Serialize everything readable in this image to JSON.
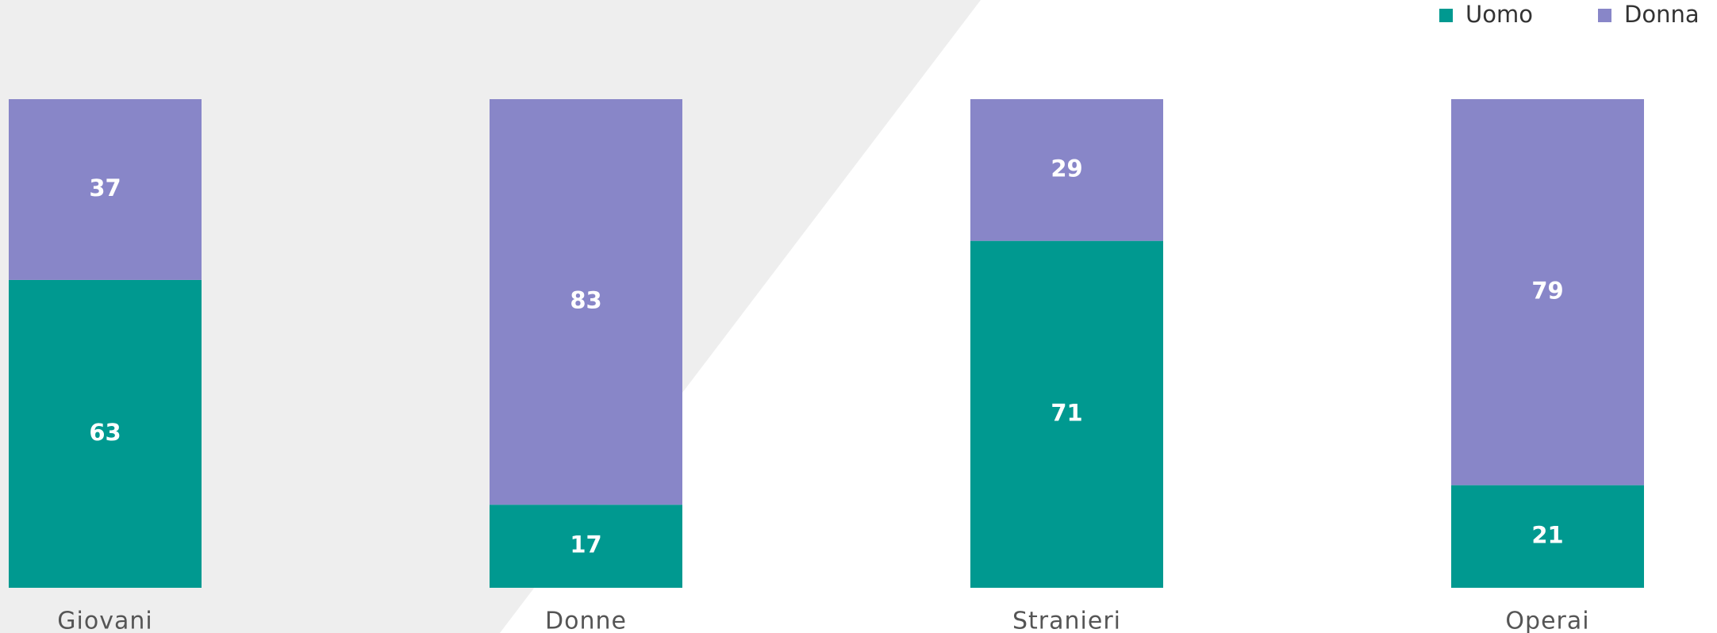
{
  "chart_data": {
    "type": "stacked_bar",
    "categories": [
      "Giovani",
      "Donne",
      "Stranieri",
      "Operai"
    ],
    "series": [
      {
        "name": "Uomo",
        "color": "#009990",
        "values": [
          63,
          17,
          71,
          21
        ]
      },
      {
        "name": "Donna",
        "color": "#8886c8",
        "values": [
          37,
          83,
          29,
          79
        ]
      }
    ],
    "ylim": [
      0,
      100
    ],
    "legend": "top-right"
  }
}
